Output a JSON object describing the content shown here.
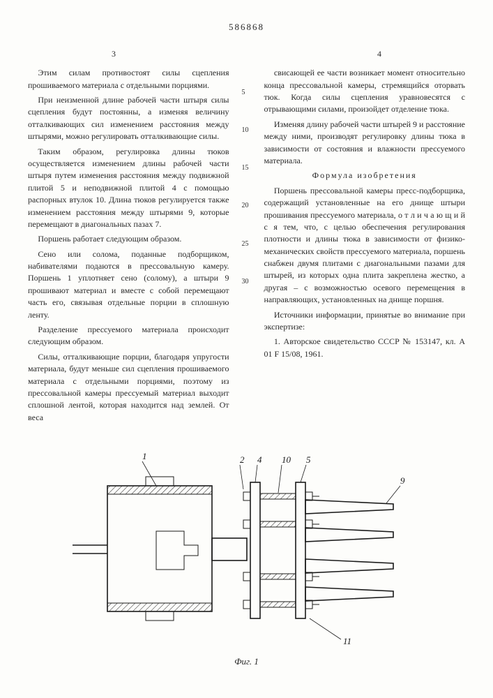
{
  "patent_number": "586868",
  "page_left": "3",
  "page_right": "4",
  "left_paragraphs": [
    "Этим силам противостоят силы сцепления прошиваемого материала с отдельными порциями.",
    "При неизменной длине рабочей части штыря силы сцепления будут постоянны, а изменяя величину отталкивающих сил изменением расстояния между штырями, можно регулировать отталкивающие силы.",
    "Таким образом, регулировка длины тюков осуществляется изменением длины рабочей части штыря путем изменения расстояния между подвижной плитой 5 и неподвижной плитой 4 с помощью распорных втулок 10. Длина тюков регулируется также изменением расстояния между штырями 9, которые перемещают в диагональных пазах 7.",
    "Поршень работает следующим образом.",
    "Сено или солома, поданные подборщиком, набивателями подаются в прессовальную камеру. Поршень 1 уплотняет сено (солому), а штыри 9 прошивают материал и вместе с собой перемещают часть его, связывая отдельные порции в сплошную ленту.",
    "Разделение прессуемого материала происходит следующим образом.",
    "Силы, отталкивающие порции, благодаря упругости материала, будут меньше сил сцепления прошиваемого материала с отдельными порциями, поэтому из прессовальной камеры прессуемый материал выходит сплошной лентой, которая находится над землей. От веса"
  ],
  "right_paragraphs_top": [
    "свисающей ее части возникает момент относительно конца прессовальной камеры, стремящийся оторвать тюк. Когда силы сцепления уравновесятся с отрывающими силами, произойдет отделение тюка.",
    "Изменяя длину рабочей части штырей 9 и расстояние между ними, производят регулировку длины тюка в зависимости от состояния и влажности прессуемого материала."
  ],
  "formula_title": "Формула изобретения",
  "right_paragraphs_formula": [
    "Поршень прессовальной камеры пресс-подборщика, содержащий установленные на его днище штыри прошивания прессуемого материала, о т л и ч а ю щ и й с я  тем, что, с целью обеспечения регулирования плотности и длины тюка в зависимости от физико-механических свойств прессуемого материала, поршень снабжен двумя плитами с диагональными пазами для штырей, из которых одна плита закреплена жестко, а другая – с возможностью осевого перемещения в направляющих, установленных на днище поршня."
  ],
  "sources_label": "Источники информации, принятые во внимание при экспертизе:",
  "sources_item": "1. Авторское свидетельство СССР № 153147, кл. A 01 F 15/08, 1961.",
  "line_numbers": [
    "5",
    "10",
    "15",
    "20",
    "25",
    "30"
  ],
  "figure": {
    "caption": "Фиг. 1",
    "labels": [
      "1",
      "2",
      "4",
      "10",
      "5",
      "9",
      "11"
    ],
    "stroke": "#1a1a1a",
    "fill_hatch": "#1a1a1a",
    "bg": "#fdfdfb",
    "stroke_width_main": 1.6,
    "stroke_width_thin": 1.0
  }
}
